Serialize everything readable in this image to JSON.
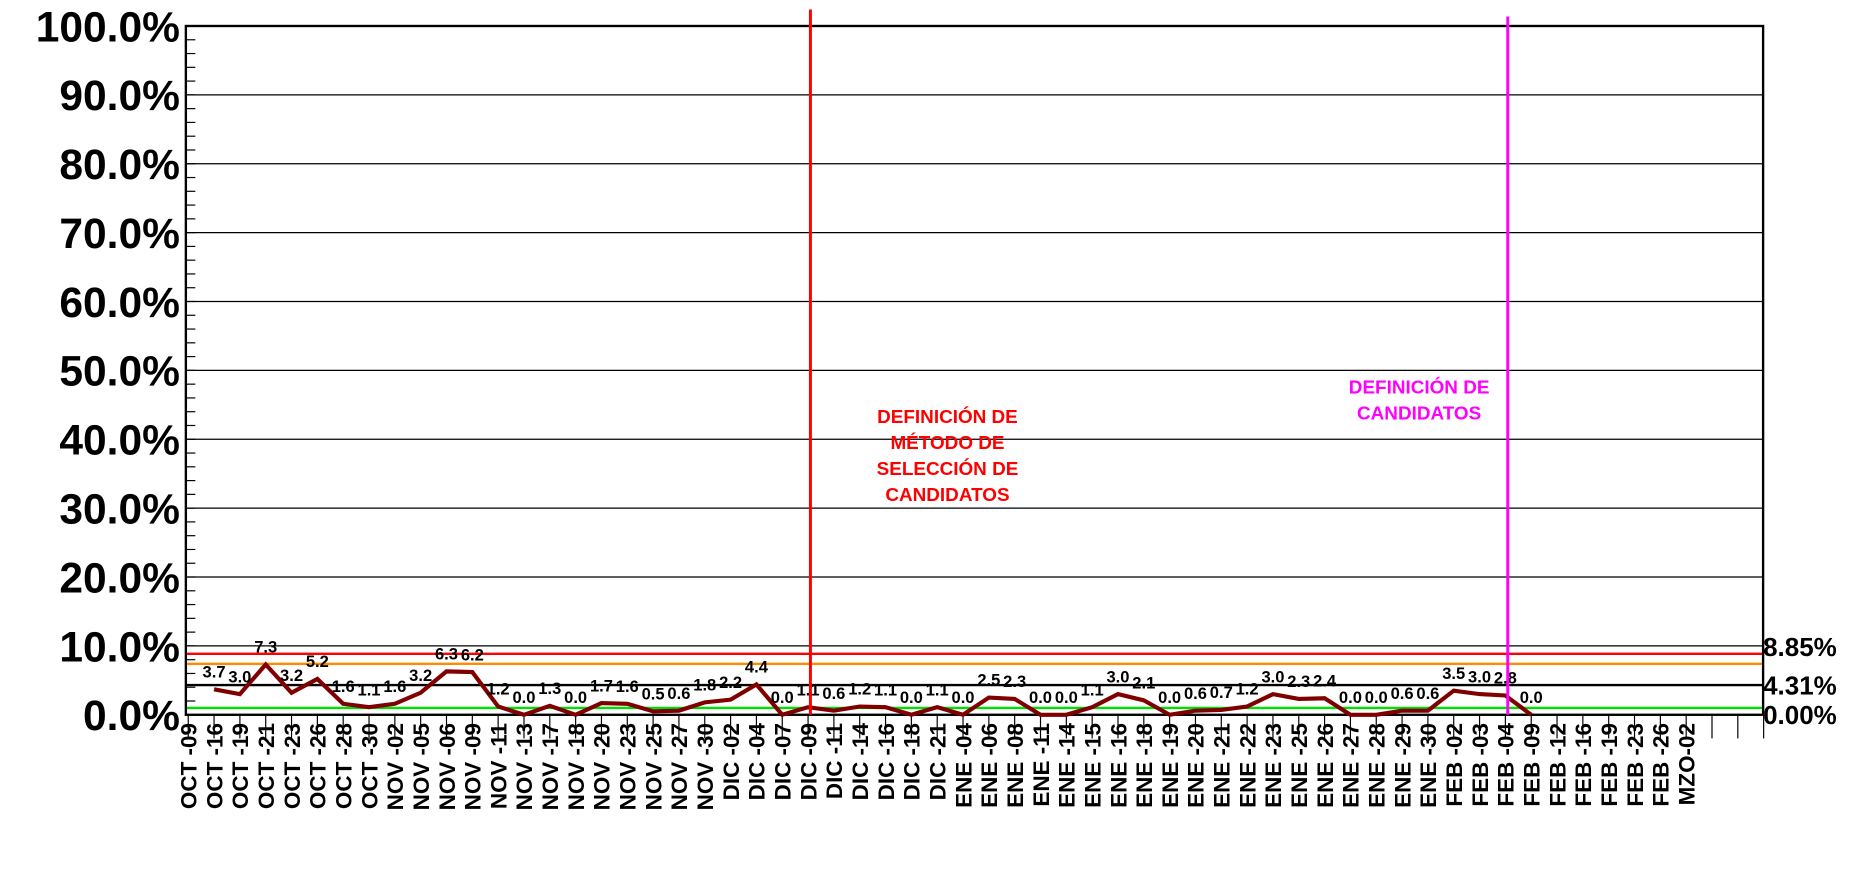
{
  "chart_data": {
    "type": "line",
    "categories": [
      "OCT -09",
      "OCT -16",
      "OCT -19",
      "OCT -21",
      "OCT -23",
      "OCT -26",
      "OCT -28",
      "OCT -30",
      "NOV -02",
      "NOV -05",
      "NOV -06",
      "NOV -09",
      "NOV -11",
      "NOV -13",
      "NOV -17",
      "NOV -18",
      "NOV -20",
      "NOV -23",
      "NOV -25",
      "NOV -27",
      "NOV -30",
      "DIC -02",
      "DIC -04",
      "DIC -07",
      "DIC -09",
      "DIC -11",
      "DIC -14",
      "DIC -16",
      "DIC -18",
      "DIC -21",
      "ENE -04",
      "ENE -06",
      "ENE -08",
      "ENE -11",
      "ENE -14",
      "ENE -15",
      "ENE -16",
      "ENE -18",
      "ENE -19",
      "ENE -20",
      "ENE -21",
      "ENE -22",
      "ENE -23",
      "ENE -25",
      "ENE -26",
      "ENE -27",
      "ENE -28",
      "ENE -29",
      "ENE -30",
      "FEB -02",
      "FEB -03",
      "FEB -04",
      "FEB -09",
      "FEB -12",
      "FEB -16",
      "FEB -19",
      "FEB -23",
      "FEB -26",
      "MZO-02"
    ],
    "series": [
      {
        "color": "#800000",
        "values": [
          null,
          3.7,
          3.0,
          7.3,
          3.2,
          5.2,
          1.6,
          1.1,
          1.6,
          3.2,
          6.3,
          6.2,
          1.2,
          0.0,
          1.3,
          0.0,
          1.7,
          1.6,
          0.5,
          0.6,
          1.8,
          2.2,
          4.4,
          0.0,
          1.1,
          0.6,
          1.2,
          1.1,
          0.0,
          1.1,
          0.0,
          2.5,
          2.3,
          0.0,
          0.0,
          1.1,
          3.0,
          2.1,
          0.0,
          0.6,
          0.7,
          1.2,
          3.0,
          2.3,
          2.4,
          0.0,
          0.0,
          0.6,
          0.6,
          3.5,
          3.0,
          2.8,
          0.0,
          null,
          null,
          null,
          null,
          null,
          null
        ],
        "value_labels": [
          null,
          "3.7",
          "3.0",
          "7.3",
          "3.2",
          "5.2",
          "1.6",
          "1.1",
          "1.6",
          "3.2",
          "6.3",
          "6.2",
          "1.2",
          "0.0",
          "1.3",
          "0.0",
          "1.7",
          "1.6",
          "0.5",
          "0.6",
          "1.8",
          "2.2",
          "4.4",
          "0.0",
          "1.1",
          "0.6",
          "1.2",
          "1.1",
          "0.0",
          "1.1",
          "0.0",
          "2.5",
          "2.3",
          "0.0",
          "0.0",
          "1.1",
          "3.0",
          "2.1",
          "0.0",
          "0.6",
          "0.7",
          "1.2",
          "3.0",
          "2.3",
          "2.4",
          "0.0",
          "0.0",
          "0.6",
          "0.6",
          "3.5",
          "3.0",
          "2.8",
          "0.0",
          null,
          null,
          null,
          null,
          null,
          null
        ]
      }
    ],
    "ylim": [
      0,
      100
    ],
    "yticks": [
      {
        "value": 0,
        "label": "0.0%"
      },
      {
        "value": 10,
        "label": "10.0%"
      },
      {
        "value": 20,
        "label": "20.0%"
      },
      {
        "value": 30,
        "label": "30.0%"
      },
      {
        "value": 40,
        "label": "40.0%"
      },
      {
        "value": 50,
        "label": "50.0%"
      },
      {
        "value": 60,
        "label": "60.0%"
      },
      {
        "value": 70,
        "label": "70.0%"
      },
      {
        "value": 80,
        "label": "80.0%"
      },
      {
        "value": 90,
        "label": "90.0%"
      },
      {
        "value": 100,
        "label": "100.0%"
      }
    ],
    "grid": true,
    "reference_lines": [
      {
        "value": 8.85,
        "label": "8.85%",
        "color": "#ff0000"
      },
      {
        "value": 7.4,
        "color": "#ff8c00"
      },
      {
        "value": 4.31,
        "label": "4.31%",
        "color": "#000000"
      },
      {
        "value": 1.0,
        "color": "#00e000"
      },
      {
        "value": 0,
        "label": "0.00%"
      }
    ],
    "annotations": [
      {
        "x": "DIC -09",
        "color": "#ff0000",
        "text": [
          "DEFINICIÓN DE",
          "MÉTODO DE",
          "SELECCIÓN DE",
          "CANDIDATOS"
        ]
      },
      {
        "x": "FEB -04",
        "color": "#ff00ff",
        "text": [
          "DEFINICIÓN DE",
          "CANDIDATOS"
        ]
      }
    ]
  }
}
